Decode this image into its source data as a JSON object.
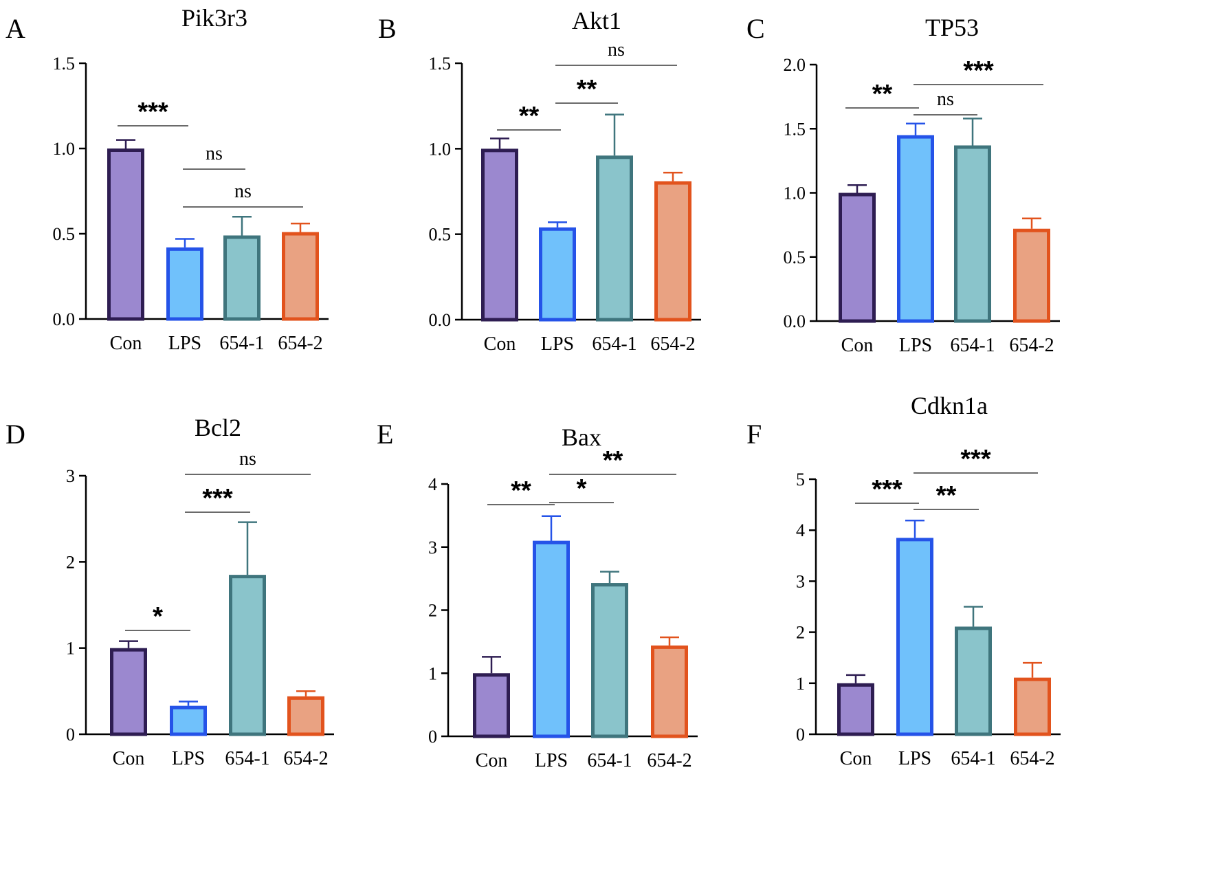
{
  "figure": {
    "categories": [
      "Con",
      "LPS",
      "654-1",
      "654-2"
    ],
    "colors": {
      "fill": [
        "#9b88cf",
        "#70c1fb",
        "#8ac4cb",
        "#e9a282"
      ],
      "stroke": [
        "#2e1d52",
        "#2553e8",
        "#3f757d",
        "#e2531d"
      ],
      "axis": "#000000",
      "bracket": "#555555"
    }
  },
  "chart_data": [
    {
      "panel": "A",
      "type": "bar",
      "title": "Pik3r3",
      "categories": [
        "Con",
        "LPS",
        "654-1",
        "654-2"
      ],
      "values": [
        1.0,
        0.42,
        0.49,
        0.51
      ],
      "errors": [
        0.05,
        0.05,
        0.11,
        0.05
      ],
      "ylim": [
        0,
        1.5
      ],
      "yticks": [
        "0.0",
        "0.5",
        "1.0",
        "1.5"
      ],
      "significance": [
        {
          "from": 0,
          "to": 1,
          "label": "***"
        },
        {
          "from": 1,
          "to": 2,
          "label": "ns"
        },
        {
          "from": 1,
          "to": 3,
          "label": "ns"
        }
      ]
    },
    {
      "panel": "B",
      "type": "bar",
      "title": "Akt1",
      "categories": [
        "Con",
        "LPS",
        "654-1",
        "654-2"
      ],
      "values": [
        1.0,
        0.54,
        0.96,
        0.81
      ],
      "errors": [
        0.06,
        0.03,
        0.24,
        0.05
      ],
      "ylim": [
        0,
        1.5
      ],
      "yticks": [
        "0.0",
        "0.5",
        "1.0",
        "1.5"
      ],
      "significance": [
        {
          "from": 0,
          "to": 1,
          "label": "**"
        },
        {
          "from": 1,
          "to": 2,
          "label": "**"
        },
        {
          "from": 1,
          "to": 3,
          "label": "ns"
        }
      ]
    },
    {
      "panel": "C",
      "type": "bar",
      "title": "TP53",
      "categories": [
        "Con",
        "LPS",
        "654-1",
        "654-2"
      ],
      "values": [
        1.0,
        1.45,
        1.37,
        0.72
      ],
      "errors": [
        0.06,
        0.09,
        0.21,
        0.08
      ],
      "ylim": [
        0,
        2.0
      ],
      "yticks": [
        "0.0",
        "0.5",
        "1.0",
        "1.5",
        "2.0"
      ],
      "significance": [
        {
          "from": 0,
          "to": 1,
          "label": "**"
        },
        {
          "from": 1,
          "to": 2,
          "label": "ns"
        },
        {
          "from": 1,
          "to": 3,
          "label": "***"
        }
      ]
    },
    {
      "panel": "D",
      "type": "bar",
      "title": "Bcl2",
      "categories": [
        "Con",
        "LPS",
        "654-1",
        "654-2"
      ],
      "values": [
        1.0,
        0.33,
        1.85,
        0.44
      ],
      "errors": [
        0.08,
        0.05,
        0.61,
        0.06
      ],
      "ylim": [
        0,
        3
      ],
      "yticks": [
        "0",
        "1",
        "2",
        "3"
      ],
      "significance": [
        {
          "from": 0,
          "to": 1,
          "label": "*"
        },
        {
          "from": 1,
          "to": 2,
          "label": "***"
        },
        {
          "from": 1,
          "to": 3,
          "label": "ns"
        }
      ]
    },
    {
      "panel": "E",
      "type": "bar",
      "title": "Bax",
      "categories": [
        "Con",
        "LPS",
        "654-1",
        "654-2"
      ],
      "values": [
        1.0,
        3.1,
        2.43,
        1.44
      ],
      "errors": [
        0.26,
        0.39,
        0.18,
        0.13
      ],
      "ylim": [
        0,
        4
      ],
      "yticks": [
        "0",
        "1",
        "2",
        "3",
        "4"
      ],
      "significance": [
        {
          "from": 0,
          "to": 1,
          "label": "**"
        },
        {
          "from": 1,
          "to": 2,
          "label": "*"
        },
        {
          "from": 1,
          "to": 3,
          "label": "**"
        }
      ]
    },
    {
      "panel": "F",
      "type": "bar",
      "title": "Cdkn1a",
      "categories": [
        "Con",
        "LPS",
        "654-1",
        "654-2"
      ],
      "values": [
        1.0,
        3.85,
        2.11,
        1.11
      ],
      "errors": [
        0.16,
        0.34,
        0.39,
        0.29
      ],
      "ylim": [
        0,
        5
      ],
      "yticks": [
        "0",
        "1",
        "2",
        "3",
        "4",
        "5"
      ],
      "significance": [
        {
          "from": 0,
          "to": 1,
          "label": "***"
        },
        {
          "from": 1,
          "to": 2,
          "label": "**"
        },
        {
          "from": 1,
          "to": 3,
          "label": "***"
        }
      ]
    }
  ]
}
